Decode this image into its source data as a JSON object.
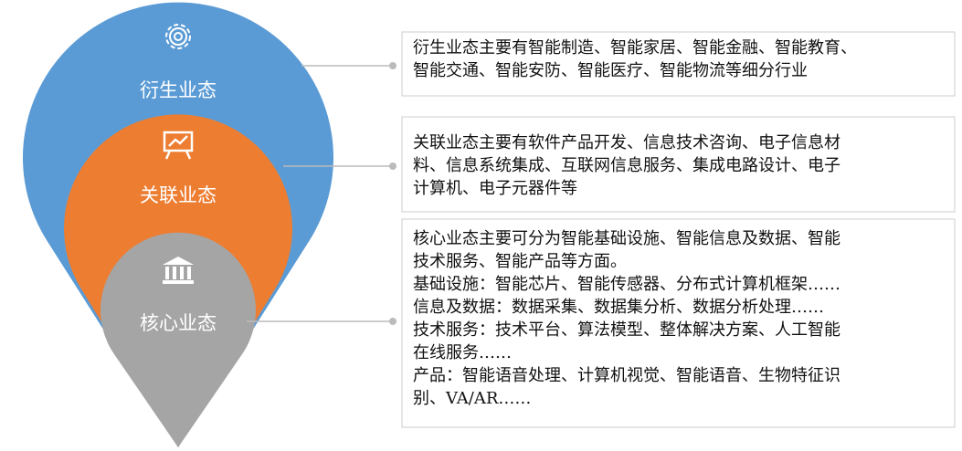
{
  "layers": [
    {
      "label": "衍生业态",
      "lines": [
        "衍生业态主要有智能制造、智能家居、智能金融、智能教育、",
        "智能交通、智能安防、智能医疗、智能物流等细分行业"
      ]
    },
    {
      "label": "关联业态",
      "lines": [
        "关联业态主要有软件产品开发、信息技术咨询、电子信息材",
        "料、信息系统集成、互联网信息服务、集成电路设计、电子",
        "计算机、电子元器件等"
      ]
    },
    {
      "label": "核心业态",
      "lines": [
        "核心业态主要可分为智能基础设施、智能信息及数据、智能",
        "技术服务、智能产品等方面。",
        "基础设施：智能芯片、智能传感器、分布式计算机框架……",
        "信息及数据：数据采集、数据集分析、数据分析处理……",
        "技术服务：技术平台、算法模型、整体解决方案、人工智能",
        "在线服务……",
        "产品：智能语音处理、计算机视觉、智能语音、生物特征识",
        "别、VA/AR……"
      ]
    }
  ]
}
